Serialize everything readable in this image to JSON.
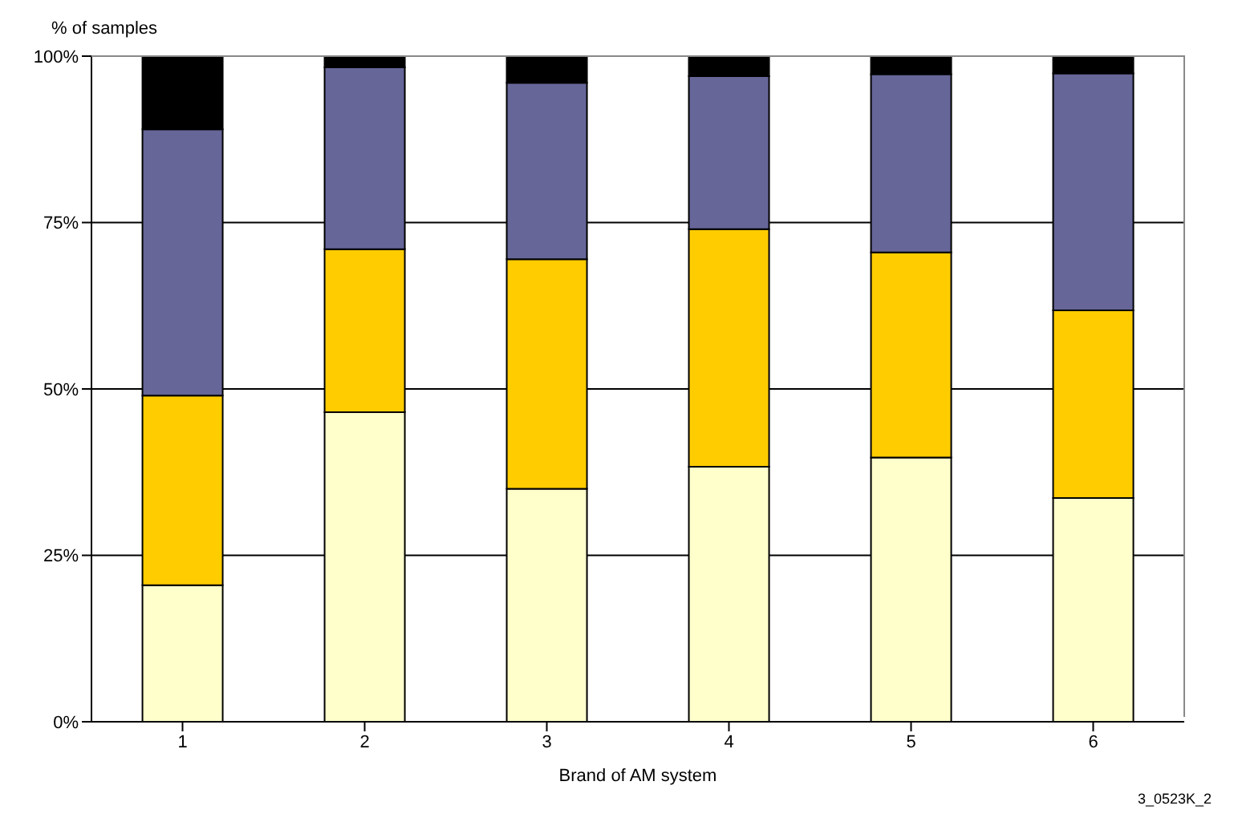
{
  "chart_data": {
    "type": "bar",
    "stacked": true,
    "ylabel": "% of samples",
    "xlabel": "Brand of AM system",
    "categories": [
      "1",
      "2",
      "3",
      "4",
      "5",
      "6"
    ],
    "series": [
      {
        "color": "#ffffcc",
        "values": [
          20.5,
          46.5,
          35,
          38.3,
          39.7,
          33.6
        ]
      },
      {
        "color": "#ffcc00",
        "values": [
          28.5,
          24.5,
          34.5,
          35.7,
          30.8,
          28.2
        ]
      },
      {
        "color": "#666699",
        "values": [
          40,
          27.3,
          26.5,
          23,
          26.8,
          35.6
        ]
      },
      {
        "color": "#000000",
        "values": [
          11,
          1.7,
          4,
          3,
          2.7,
          2.6
        ]
      }
    ],
    "ylim": [
      0,
      100
    ],
    "yticks": [
      {
        "value": 0,
        "label": "0%"
      },
      {
        "value": 25,
        "label": "25%"
      },
      {
        "value": 50,
        "label": "50%"
      },
      {
        "value": 75,
        "label": "75%"
      },
      {
        "value": 100,
        "label": "100%"
      }
    ],
    "grid": "y",
    "legend": false,
    "annotations": [
      "3_0523K_2"
    ]
  }
}
